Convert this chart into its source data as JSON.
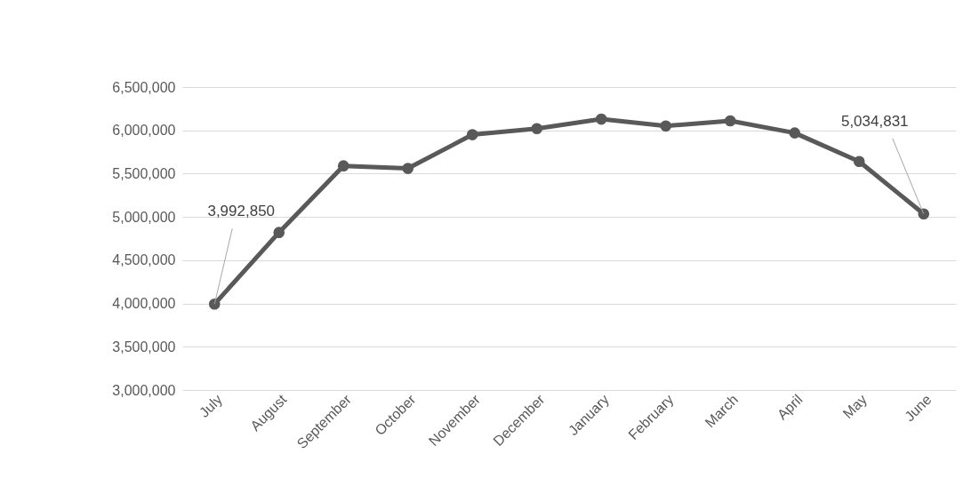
{
  "chart_data": {
    "type": "line",
    "categories": [
      "July",
      "August",
      "September",
      "October",
      "November",
      "December",
      "January",
      "February",
      "March",
      "April",
      "May",
      "June"
    ],
    "series": [
      {
        "color": "#595959",
        "values": [
          3992850,
          4820000,
          5590000,
          5560000,
          5950000,
          6020000,
          6130000,
          6050000,
          6110000,
          5970000,
          5640000,
          5034831
        ],
        "value_labels": [
          "3,992,850",
          null,
          null,
          null,
          null,
          null,
          null,
          null,
          null,
          null,
          null,
          "5,034,831"
        ]
      }
    ],
    "ylim": [
      3000000,
      6500000
    ],
    "yticks": [
      {
        "value": 3000000,
        "label": "3,000,000"
      },
      {
        "value": 3500000,
        "label": "3,500,000"
      },
      {
        "value": 4000000,
        "label": "4,000,000"
      },
      {
        "value": 4500000,
        "label": "4,500,000"
      },
      {
        "value": 5000000,
        "label": "5,000,000"
      },
      {
        "value": 5500000,
        "label": "5,500,000"
      },
      {
        "value": 6000000,
        "label": "6,000,000"
      },
      {
        "value": 6500000,
        "label": "6,500,000"
      }
    ],
    "grid": "y",
    "marker": "circle",
    "line_style": "solid"
  }
}
